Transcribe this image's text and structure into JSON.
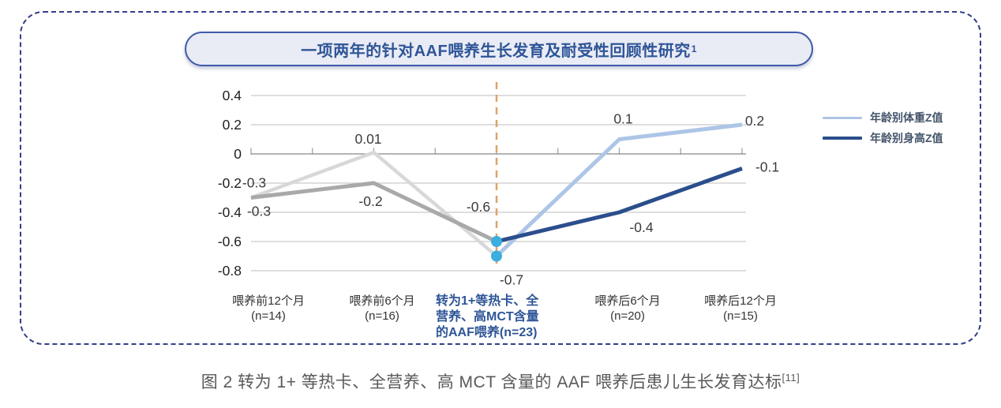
{
  "figure": {
    "title": "一项两年的针对AAF喂养生长发育及耐受性回顾性研究",
    "title_superscript": "1",
    "caption": "图 2 转为 1+ 等热卡、全营养、高 MCT 含量的 AAF 喂养后患儿生长发育达标",
    "caption_superscript": "[11]"
  },
  "legend": {
    "items": [
      {
        "label": "年龄别体重Z值",
        "color": "#adc5e6",
        "thickness": 3
      },
      {
        "label": "年龄别身高Z值",
        "color": "#2b4e8c",
        "thickness": 4
      }
    ]
  },
  "chart_data": {
    "type": "line",
    "title": "一项两年的针对AAF喂养生长发育及耐受性回顾性研究1",
    "categories": [
      {
        "lines": [
          "喂养前12个月",
          "(n=14)"
        ],
        "highlight": false
      },
      {
        "lines": [
          "喂养前6个月",
          "(n=16)"
        ],
        "highlight": false
      },
      {
        "lines": [
          "转为1+等热卡、全",
          "营养、高MCT含量",
          "的AAF喂养(n=23)"
        ],
        "highlight": true
      },
      {
        "lines": [
          "喂养后6个月",
          "(n=20)"
        ],
        "highlight": false
      },
      {
        "lines": [
          "喂养后12个月",
          "(n=15)"
        ],
        "highlight": false
      }
    ],
    "series": [
      {
        "name": "年龄别体重Z值",
        "values": [
          -0.3,
          0.01,
          -0.7,
          0.1,
          0.2
        ],
        "point_labels": [
          "-0.3",
          "0.01",
          "-0.7",
          "0.1",
          "0.2"
        ],
        "color_before_transition": "#d8d8d8",
        "color_after_transition": "#adc5e6"
      },
      {
        "name": "年龄别身高Z值",
        "values": [
          -0.3,
          -0.2,
          -0.6,
          -0.4,
          -0.1
        ],
        "point_labels": [
          "-0.3",
          "-0.2",
          "-0.6",
          "-0.4",
          "-0.1"
        ],
        "color_before_transition": "#a9a9a9",
        "color_after_transition": "#2b4e8c"
      }
    ],
    "transition_index": 2,
    "transition_marker_color": "#3aaede",
    "divider_line_color": "#dfa164",
    "y_axis": {
      "min": -0.8,
      "max": 0.4,
      "step": 0.2,
      "tick_labels": [
        "0.4",
        "0.2",
        "0",
        "-0.2",
        "-0.4",
        "-0.6",
        "-0.8"
      ]
    },
    "grid": true,
    "legend_position": "right"
  }
}
